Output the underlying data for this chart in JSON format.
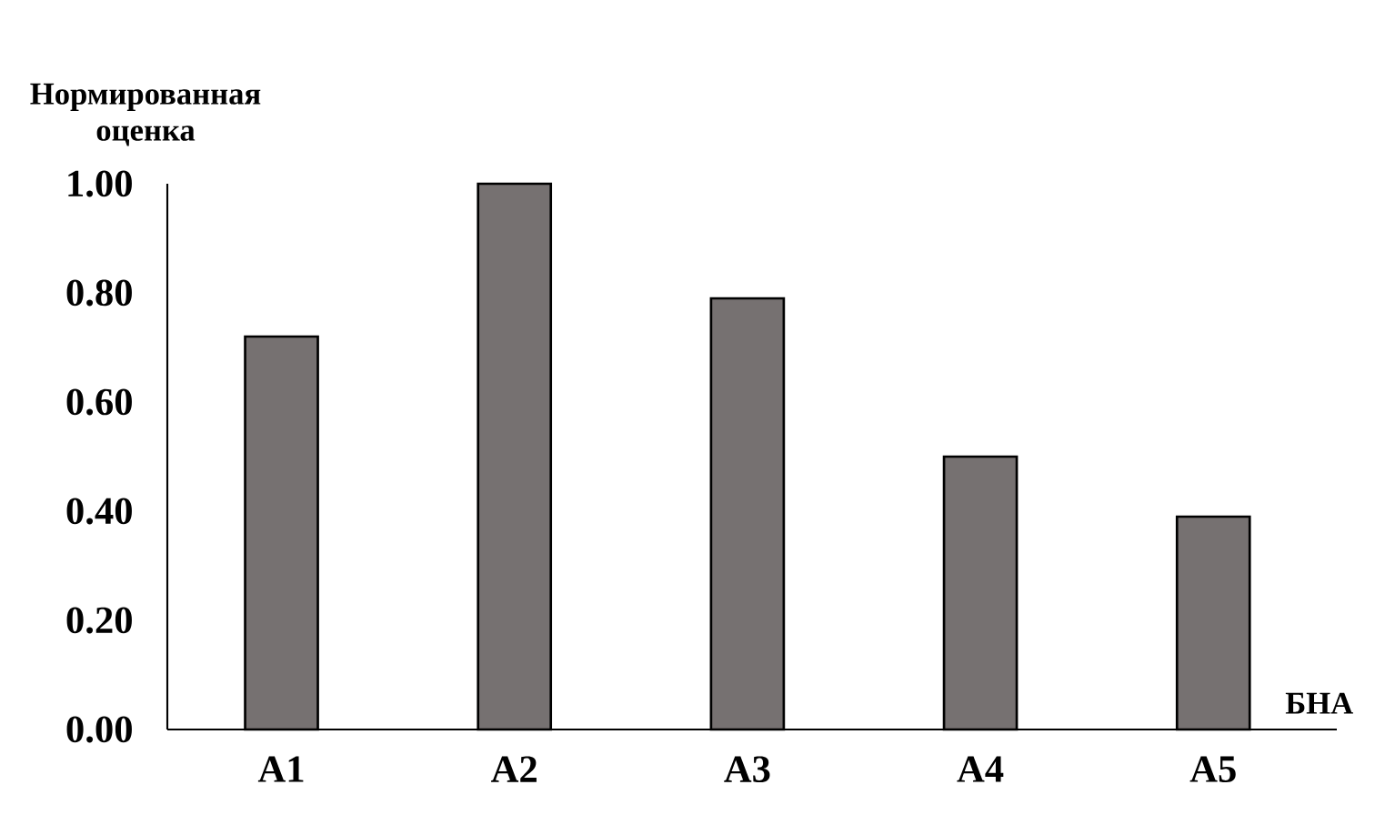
{
  "chart_data": {
    "type": "bar",
    "ylabel": "Нормированная оценка",
    "xlabel": "БНА",
    "categories": [
      "A1",
      "A2",
      "A3",
      "A4",
      "A5"
    ],
    "values": [
      0.72,
      1.0,
      0.79,
      0.5,
      0.39
    ],
    "color": "#767171",
    "ylim": [
      0,
      1
    ],
    "yticks": [
      {
        "value": 0,
        "label": "0.00"
      },
      {
        "value": 0.2,
        "label": "0.20"
      },
      {
        "value": 0.4,
        "label": "0.40"
      },
      {
        "value": 0.6,
        "label": "0.60"
      },
      {
        "value": 0.8,
        "label": "0.80"
      },
      {
        "value": 1,
        "label": "1.00"
      }
    ],
    "grid": false
  }
}
